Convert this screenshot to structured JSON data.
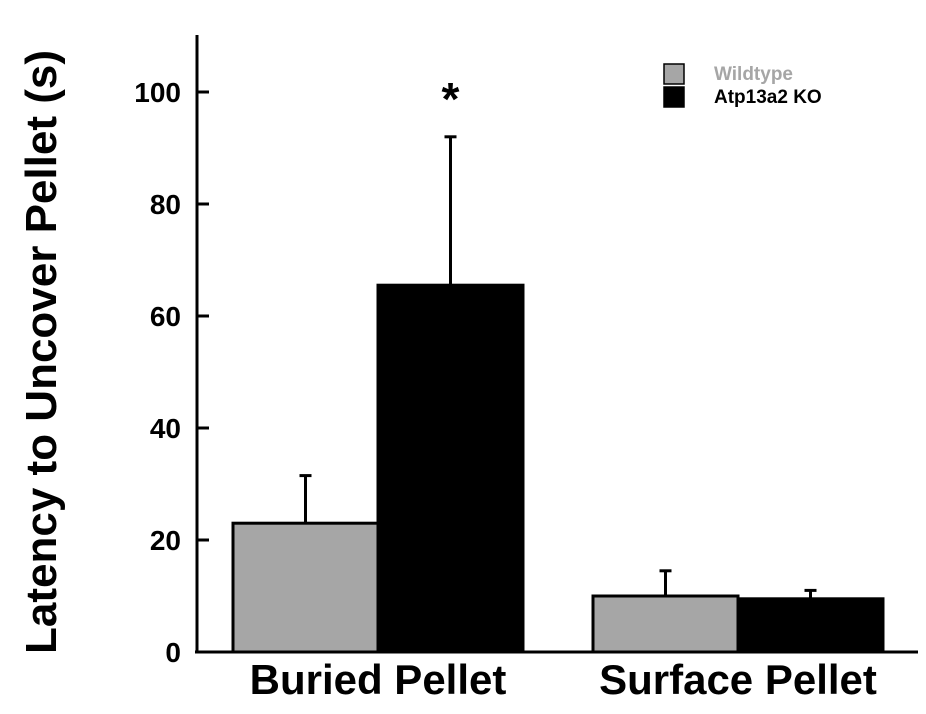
{
  "chart_data": {
    "type": "bar",
    "title": "",
    "xlabel": "",
    "ylabel": "Latency to Uncover Pellet (s)",
    "ylim": [
      0,
      110
    ],
    "yticks": [
      0,
      20,
      40,
      60,
      80,
      100
    ],
    "ytick_labels": [
      "0",
      "20",
      "40",
      "60",
      "80",
      "100"
    ],
    "grid": false,
    "legend_position": "top-right",
    "categories": [
      "Buried Pellet",
      "Surface Pellet"
    ],
    "series": [
      {
        "name": "Wildtype",
        "color": "#a6a6a6",
        "legend_text_color": "#a6a6a6",
        "values": [
          23,
          10
        ],
        "errors": [
          8.5,
          4.5
        ]
      },
      {
        "name": "Atp13a2 KO",
        "color": "#000000",
        "legend_text_color": "#000000",
        "values": [
          65.5,
          9.5
        ],
        "errors": [
          26.5,
          1.5
        ]
      }
    ],
    "annotations": [
      {
        "text": "*",
        "category": "Buried Pellet",
        "series": "Atp13a2 KO"
      }
    ]
  }
}
